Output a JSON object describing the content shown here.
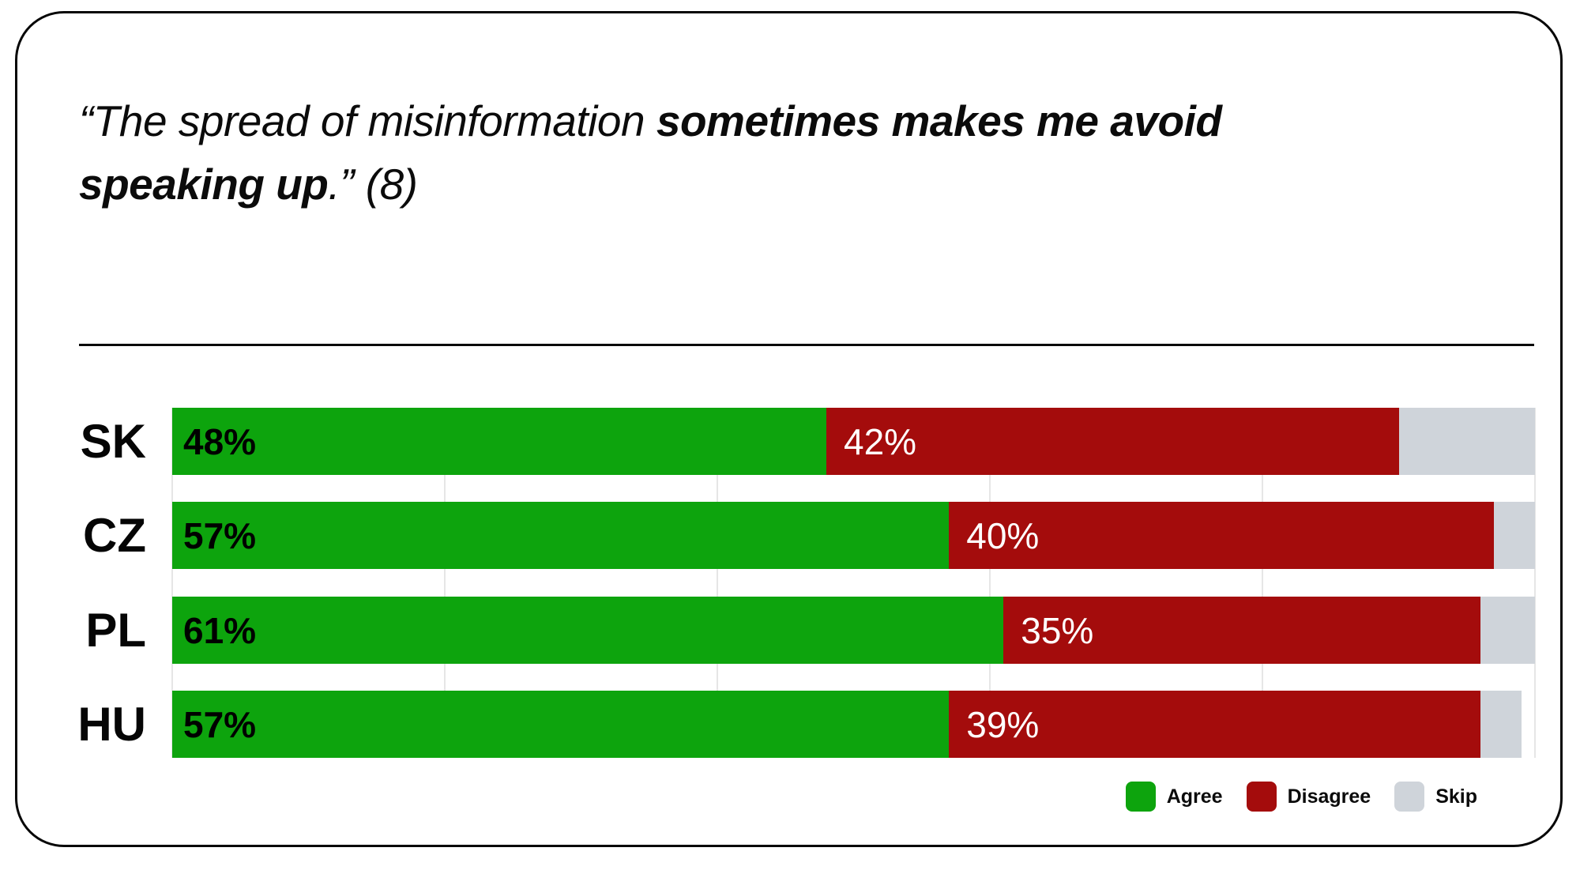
{
  "card": {
    "title": {
      "prefix": "“The spread of misinformation ",
      "bold_line1": "sometimes makes me avoid",
      "bold_line2": "speaking up",
      "suffix": ".” (8)"
    }
  },
  "chart_data": {
    "type": "bar",
    "orientation": "horizontal",
    "stacked": true,
    "unit": "%",
    "title": "“The spread of misinformation sometimes makes me avoid speaking up.” (8)",
    "categories": [
      "SK",
      "CZ",
      "PL",
      "HU"
    ],
    "series": [
      {
        "name": "Agree",
        "color": "#0da40d",
        "values": [
          48,
          57,
          61,
          57
        ],
        "label_style": "black-bold"
      },
      {
        "name": "Disagree",
        "color": "#a40c0c",
        "values": [
          42,
          40,
          35,
          39
        ],
        "label_style": "white-regular"
      },
      {
        "name": "Skip",
        "color": "#cfd4da",
        "values": [
          10,
          3,
          4,
          3
        ],
        "label_style": "none"
      }
    ],
    "xlim": [
      0,
      100
    ],
    "gridlines_every_pct": 20,
    "grid_on": true,
    "legend_position": "bottom-right",
    "value_label_suffix": "%"
  },
  "legend": {
    "items": [
      {
        "label": "Agree",
        "color": "#0da40d"
      },
      {
        "label": "Disagree",
        "color": "#a40c0c"
      },
      {
        "label": "Skip",
        "color": "#cfd4da"
      }
    ]
  }
}
